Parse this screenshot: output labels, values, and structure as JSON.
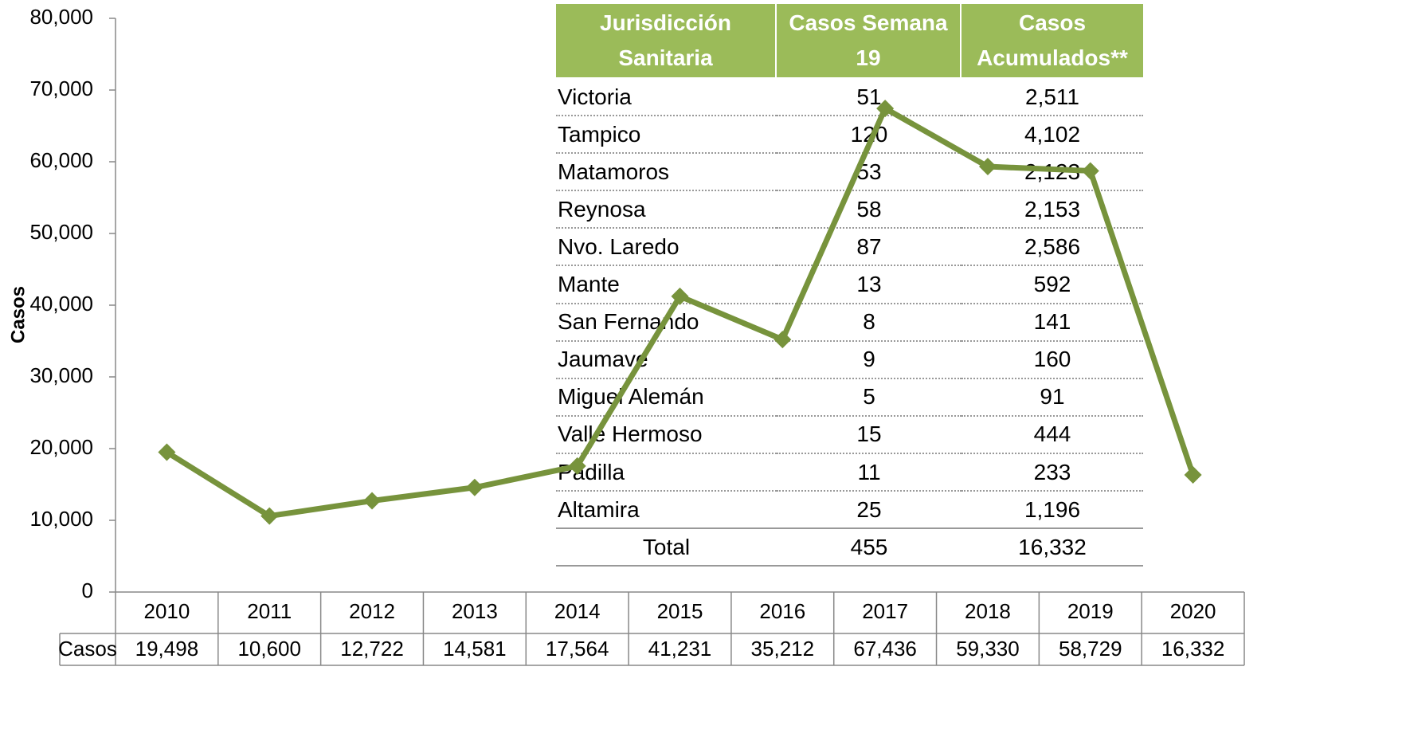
{
  "chart_data": {
    "type": "line",
    "y_label": "Casos",
    "categories": [
      "2010",
      "2011",
      "2012",
      "2013",
      "2014",
      "2015",
      "2016",
      "2017",
      "2018",
      "2019",
      "2020"
    ],
    "series": [
      {
        "name": "Casos",
        "color": "#77933c",
        "values": [
          19498,
          10600,
          12722,
          14581,
          17564,
          41231,
          35212,
          67436,
          59330,
          58729,
          16332
        ],
        "value_labels": [
          "19,498",
          "10,600",
          "12,722",
          "14,581",
          "17,564",
          "41,231",
          "35,212",
          "67,436",
          "59,330",
          "58,729",
          "16,332"
        ]
      }
    ],
    "ylim": [
      0,
      80000
    ],
    "yticks": [
      0,
      {
        "value": 10000,
        "label": "10,000"
      },
      {
        "value": 20000,
        "label": "20,000"
      },
      {
        "value": 30000,
        "label": "30,000"
      },
      {
        "value": 40000,
        "label": "40,000"
      },
      {
        "value": 50000,
        "label": "50,000"
      },
      {
        "value": 60000,
        "label": "60,000"
      },
      {
        "value": 70000,
        "label": "70,000"
      },
      {
        "value": 80000,
        "label": "80,000"
      }
    ]
  },
  "table": {
    "header": [
      "Jurisdicción Sanitaria",
      "Casos Semana 19",
      "Casos Acumulados**"
    ],
    "rows": [
      [
        "Victoria",
        "51",
        "2,511"
      ],
      [
        "Tampico",
        "120",
        "4,102"
      ],
      [
        "Matamoros",
        "53",
        "2,123"
      ],
      [
        "Reynosa",
        "58",
        "2,153"
      ],
      [
        "Nvo. Laredo",
        "87",
        "2,586"
      ],
      [
        "Mante",
        "13",
        "592"
      ],
      [
        "San Fernando",
        "8",
        "141"
      ],
      [
        "Jaumave",
        "9",
        "160"
      ],
      [
        "Miguel Alemán",
        "5",
        "91"
      ],
      [
        "Valle Hermoso",
        "15",
        "444"
      ],
      [
        "Padilla",
        "11",
        "233"
      ],
      [
        "Altamira",
        "25",
        "1,196"
      ]
    ],
    "total": [
      "Total",
      "455",
      "16,332"
    ]
  }
}
